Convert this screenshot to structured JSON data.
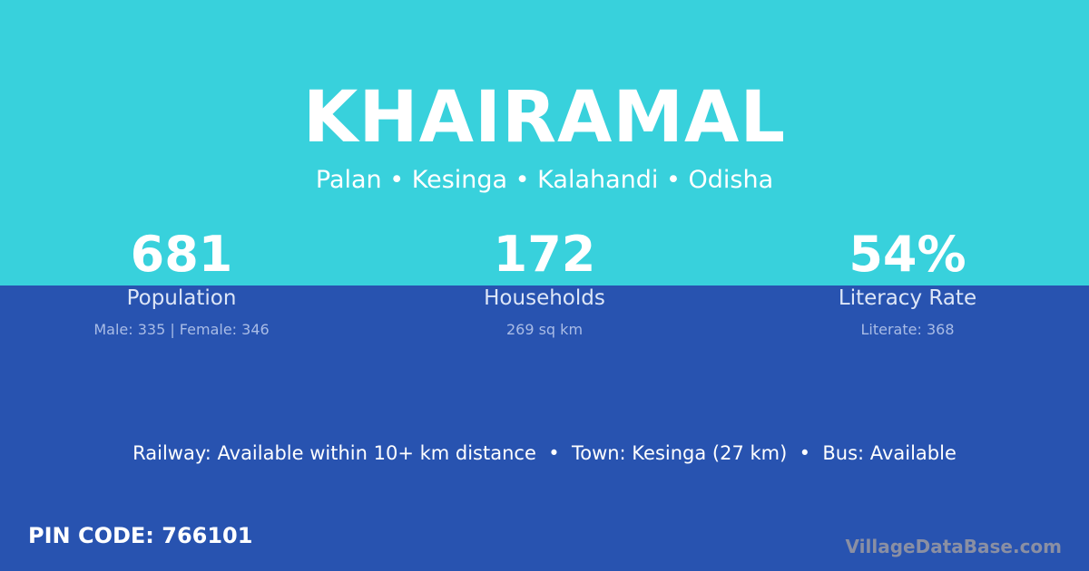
{
  "village": {
    "name": "KHAIRAMAL",
    "location": "Palan • Kesinga • Kalahandi • Odisha"
  },
  "stats": [
    {
      "value": "681",
      "label": "Population",
      "detail": "Male: 335 | Female: 346"
    },
    {
      "value": "172",
      "label": "Households",
      "detail": "269 sq km"
    },
    {
      "value": "54%",
      "label": "Literacy Rate",
      "detail": "Literate: 368"
    }
  ],
  "info_line": "Railway: Available within 10+ km distance  •  Town: Kesinga (27 km)  •  Bus: Available",
  "pin_code": "PIN CODE: 766101",
  "brand": "VillageDataBase.com",
  "colors": {
    "top": "#38d1dc",
    "bottom": "#2853b0"
  }
}
